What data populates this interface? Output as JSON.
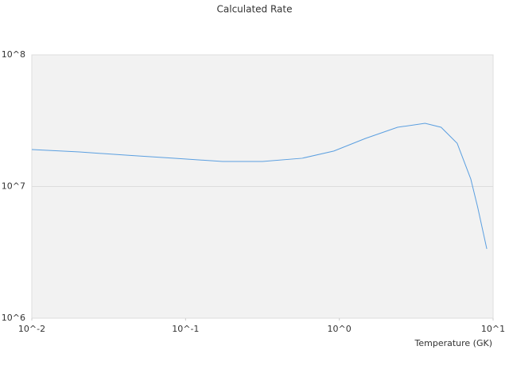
{
  "chart_data": {
    "type": "line",
    "title": "Calculated Rate",
    "xlabel": "Temperature (GK)",
    "xscale": "log",
    "yscale": "log",
    "xlim": [
      0.01,
      10
    ],
    "ylim": [
      1000000,
      100000000
    ],
    "xticks": [
      {
        "value": 0.01,
        "label": "10^-2"
      },
      {
        "value": 0.1,
        "label": "10^-1"
      },
      {
        "value": 1,
        "label": "10^0"
      },
      {
        "value": 10,
        "label": "10^1"
      }
    ],
    "yticks": [
      {
        "value": 1000000,
        "label": "10^6"
      },
      {
        "value": 10000000,
        "label": "10^7"
      },
      {
        "value": 100000000,
        "label": "10^8"
      }
    ],
    "grid": true,
    "series": [
      {
        "color": "#5b9fe0",
        "x": [
          0.01,
          0.0204,
          0.0417,
          0.0853,
          0.174,
          0.316,
          0.573,
          0.921,
          1.48,
          2.39,
          3.61,
          4.59,
          5.84,
          7.16,
          7.93,
          9.1
        ],
        "values": [
          19100000,
          18300000,
          17300000,
          16400000,
          15500000,
          15500000,
          16400000,
          18600000,
          23200000,
          28200000,
          30200000,
          28200000,
          21300000,
          11400000,
          7000000,
          3360000
        ]
      }
    ]
  }
}
